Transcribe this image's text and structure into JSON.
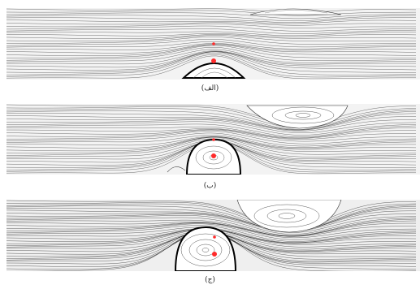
{
  "figure": {
    "panels": [
      {
        "caption": "(الف)"
      },
      {
        "caption": "(ب)"
      },
      {
        "caption": "(ج)"
      }
    ],
    "colors": {
      "streamline": "#000000",
      "background": "#ffffff",
      "marker": "#ff2a2a"
    }
  }
}
